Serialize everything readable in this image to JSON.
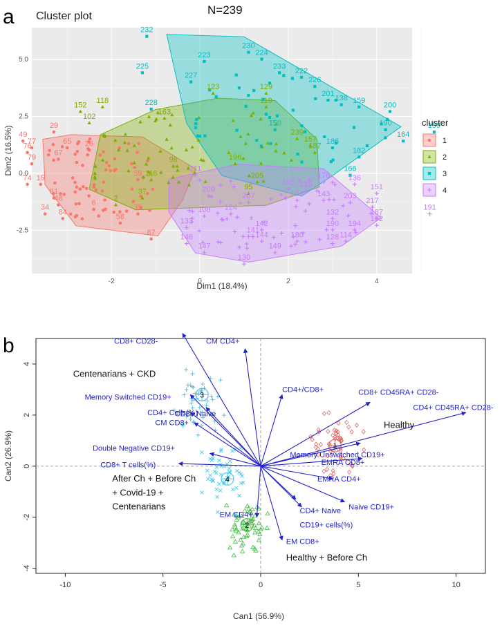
{
  "panel_a_letter": "a",
  "panel_b_letter": "b",
  "n_label": "N=239",
  "chart_data": [
    {
      "type": "scatter",
      "title": "Cluster plot",
      "xlabel": "Dim1 (18.4%)",
      "ylabel": "Dim2 (16.5%)",
      "xlim": [
        -3.8,
        4.8
      ],
      "ylim": [
        -4.4,
        6.4
      ],
      "xticks": [
        -2,
        0,
        2,
        4
      ],
      "yticks": [
        -2.5,
        0.0,
        2.5,
        5.0
      ],
      "xtick_labels": [
        "-2",
        "0",
        "2",
        "4"
      ],
      "ytick_labels": [
        "-2.5",
        "0.0",
        "2.5",
        "5.0"
      ],
      "legend_title": "cluster",
      "legend_labels": [
        "1",
        "2",
        "3",
        "4"
      ],
      "colors": {
        "1": "#f8766d",
        "2": "#7cae00",
        "3": "#00bfc4",
        "4": "#c77cff"
      },
      "hulls": {
        "1": [
          [
            -3.55,
            1.5
          ],
          [
            -2.9,
            1.7
          ],
          [
            -1.3,
            1.6
          ],
          [
            -0.1,
            0.2
          ],
          [
            -0.4,
            -1.2
          ],
          [
            -0.95,
            -2.75
          ],
          [
            -2.8,
            -2.3
          ],
          [
            -3.5,
            -0.5
          ]
        ],
        "2": [
          [
            -2.25,
            1.7
          ],
          [
            -1.0,
            2.8
          ],
          [
            0.4,
            3.3
          ],
          [
            1.7,
            3.2
          ],
          [
            2.65,
            1.5
          ],
          [
            2.7,
            -0.6
          ],
          [
            1.5,
            -1.4
          ],
          [
            0.1,
            -1.5
          ],
          [
            -1.45,
            -1.6
          ],
          [
            -2.5,
            -0.7
          ]
        ],
        "3": [
          [
            -0.75,
            6.1
          ],
          [
            1.0,
            6.0
          ],
          [
            4.55,
            2.05
          ],
          [
            3.0,
            -0.1
          ],
          [
            2.3,
            -1.0
          ],
          [
            0.5,
            -0.1
          ],
          [
            -0.3,
            2.2
          ]
        ],
        "4": [
          [
            -0.7,
            -0.25
          ],
          [
            0.85,
            0.4
          ],
          [
            2.8,
            0.2
          ],
          [
            4.1,
            -1.95
          ],
          [
            3.2,
            -3.2
          ],
          [
            1.1,
            -3.9
          ],
          [
            -0.1,
            -3.5
          ],
          [
            -0.7,
            -1.7
          ]
        ]
      },
      "labeled_points": [
        {
          "id": "232",
          "x": -1.2,
          "y": 6.2,
          "cluster": "3"
        },
        {
          "id": "230",
          "x": 1.1,
          "y": 5.5,
          "cluster": "3"
        },
        {
          "id": "224",
          "x": 1.4,
          "y": 5.2,
          "cluster": "3"
        },
        {
          "id": "223",
          "x": 0.1,
          "y": 5.1,
          "cluster": "3"
        },
        {
          "id": "225",
          "x": -1.3,
          "y": 4.6,
          "cluster": "3"
        },
        {
          "id": "233",
          "x": 1.8,
          "y": 4.6,
          "cluster": "3"
        },
        {
          "id": "222",
          "x": 2.3,
          "y": 4.4,
          "cluster": "3"
        },
        {
          "id": "227",
          "x": -0.2,
          "y": 4.2,
          "cluster": "3"
        },
        {
          "id": "226",
          "x": 2.6,
          "y": 4.0,
          "cluster": "3"
        },
        {
          "id": "201",
          "x": 2.9,
          "y": 3.4,
          "cluster": "3"
        },
        {
          "id": "138",
          "x": 3.2,
          "y": 3.2,
          "cluster": "3"
        },
        {
          "id": "159",
          "x": 3.6,
          "y": 3.1,
          "cluster": "3"
        },
        {
          "id": "200",
          "x": 4.3,
          "y": 2.9,
          "cluster": "3"
        },
        {
          "id": "150",
          "x": 1.7,
          "y": 2.1,
          "cluster": "3"
        },
        {
          "id": "190",
          "x": 4.2,
          "y": 2.1,
          "cluster": "3"
        },
        {
          "id": "199",
          "x": 5.3,
          "y": 2.0,
          "cluster": "3"
        },
        {
          "id": "164",
          "x": 4.6,
          "y": 1.6,
          "cluster": "3"
        },
        {
          "id": "182",
          "x": 3.6,
          "y": 0.9,
          "cluster": "3"
        },
        {
          "id": "166",
          "x": 3.4,
          "y": 0.1,
          "cluster": "3"
        },
        {
          "id": "123",
          "x": 0.3,
          "y": 3.7,
          "cluster": "2"
        },
        {
          "id": "129",
          "x": 1.5,
          "y": 3.7,
          "cluster": "2"
        },
        {
          "id": "119",
          "x": 1.5,
          "y": 3.1,
          "cluster": "2"
        },
        {
          "id": "118",
          "x": -2.2,
          "y": 3.1,
          "cluster": "2"
        },
        {
          "id": "152",
          "x": -2.7,
          "y": 2.9,
          "cluster": "2"
        },
        {
          "id": "102",
          "x": -2.5,
          "y": 2.4,
          "cluster": "2"
        },
        {
          "id": "163",
          "x": -0.8,
          "y": 2.6,
          "cluster": "2"
        },
        {
          "id": "228",
          "x": -1.1,
          "y": 3.0,
          "cluster": "3"
        },
        {
          "id": "239",
          "x": 2.2,
          "y": 1.7,
          "cluster": "2"
        },
        {
          "id": "157",
          "x": 2.5,
          "y": 1.4,
          "cluster": "2"
        },
        {
          "id": "186",
          "x": 3.0,
          "y": 1.3,
          "cluster": "3"
        },
        {
          "id": "187",
          "x": 2.6,
          "y": 1.1,
          "cluster": "2"
        },
        {
          "id": "29",
          "x": -3.3,
          "y": 2.0,
          "cluster": "1"
        },
        {
          "id": "49",
          "x": -4.0,
          "y": 1.6,
          "cluster": "1"
        },
        {
          "id": "77",
          "x": -3.8,
          "y": 1.3,
          "cluster": "1"
        },
        {
          "id": "76",
          "x": -3.9,
          "y": 1.1,
          "cluster": "1"
        },
        {
          "id": "65",
          "x": -3.0,
          "y": 1.3,
          "cluster": "1"
        },
        {
          "id": "26",
          "x": -2.5,
          "y": 1.2,
          "cluster": "1"
        },
        {
          "id": "67",
          "x": -3.2,
          "y": 0.8,
          "cluster": "1"
        },
        {
          "id": "79",
          "x": -3.8,
          "y": 0.6,
          "cluster": "1"
        },
        {
          "id": "74",
          "x": -3.9,
          "y": -0.3,
          "cluster": "1"
        },
        {
          "id": "15",
          "x": -3.6,
          "y": -0.3,
          "cluster": "1"
        },
        {
          "id": "81",
          "x": -3.3,
          "y": -0.9,
          "cluster": "1"
        },
        {
          "id": "48",
          "x": -3.2,
          "y": -1.2,
          "cluster": "1"
        },
        {
          "id": "34",
          "x": -3.5,
          "y": -1.6,
          "cluster": "1"
        },
        {
          "id": "84",
          "x": -3.1,
          "y": -1.8,
          "cluster": "1"
        },
        {
          "id": "6",
          "x": -2.4,
          "y": -1.4,
          "cluster": "1"
        },
        {
          "id": "58",
          "x": -1.8,
          "y": -2.0,
          "cluster": "1"
        },
        {
          "id": "87",
          "x": -1.1,
          "y": -2.7,
          "cluster": "1"
        },
        {
          "id": "35",
          "x": -1.4,
          "y": -1.6,
          "cluster": "1"
        },
        {
          "id": "37",
          "x": -1.3,
          "y": -0.9,
          "cluster": "2"
        },
        {
          "id": "2",
          "x": -1.9,
          "y": -1.2,
          "cluster": "2"
        },
        {
          "id": "59",
          "x": -1.4,
          "y": -0.1,
          "cluster": "1"
        },
        {
          "id": "116",
          "x": -1.1,
          "y": -0.1,
          "cluster": "2"
        },
        {
          "id": "98",
          "x": -0.6,
          "y": 0.5,
          "cluster": "2"
        },
        {
          "id": "196",
          "x": 0.8,
          "y": 0.6,
          "cluster": "2"
        },
        {
          "id": "211",
          "x": -0.1,
          "y": 0.1,
          "cluster": "4"
        },
        {
          "id": "205",
          "x": 1.3,
          "y": -0.2,
          "cluster": "2"
        },
        {
          "id": "95",
          "x": 1.1,
          "y": -0.7,
          "cluster": "2"
        },
        {
          "id": "176",
          "x": 2.8,
          "y": -0.2,
          "cluster": "4"
        },
        {
          "id": "151",
          "x": 4.0,
          "y": -0.7,
          "cluster": "4"
        },
        {
          "id": "191",
          "x": 5.2,
          "y": -1.6,
          "cluster": "4"
        },
        {
          "id": "136",
          "x": 3.5,
          "y": -0.3,
          "cluster": "4"
        },
        {
          "id": "209",
          "x": 0.2,
          "y": -0.8,
          "cluster": "4"
        },
        {
          "id": "207",
          "x": 1.1,
          "y": -1.1,
          "cluster": "4"
        },
        {
          "id": "174",
          "x": 2.2,
          "y": -1.0,
          "cluster": "4"
        },
        {
          "id": "143",
          "x": 2.8,
          "y": -1.0,
          "cluster": "4"
        },
        {
          "id": "203",
          "x": 3.4,
          "y": -1.1,
          "cluster": "4"
        },
        {
          "id": "217",
          "x": 3.9,
          "y": -1.3,
          "cluster": "4"
        },
        {
          "id": "124",
          "x": 0.7,
          "y": -1.6,
          "cluster": "4"
        },
        {
          "id": "108",
          "x": 0.1,
          "y": -1.7,
          "cluster": "4"
        },
        {
          "id": "133",
          "x": -0.3,
          "y": -2.2,
          "cluster": "4"
        },
        {
          "id": "132",
          "x": 3.0,
          "y": -1.8,
          "cluster": "4"
        },
        {
          "id": "187",
          "x": 4.0,
          "y": -1.8,
          "cluster": "4"
        },
        {
          "id": "142",
          "x": 1.4,
          "y": -2.3,
          "cluster": "4"
        },
        {
          "id": "190",
          "x": 3.0,
          "y": -2.3,
          "cluster": "4"
        },
        {
          "id": "194",
          "x": 3.5,
          "y": -2.3,
          "cluster": "4"
        },
        {
          "id": "162",
          "x": 4.0,
          "y": -2.1,
          "cluster": "4"
        },
        {
          "id": "141",
          "x": 1.2,
          "y": -2.6,
          "cluster": "4"
        },
        {
          "id": "146",
          "x": -0.3,
          "y": -2.9,
          "cluster": "4"
        },
        {
          "id": "144",
          "x": 1.4,
          "y": -2.8,
          "cluster": "4"
        },
        {
          "id": "180",
          "x": 2.2,
          "y": -2.8,
          "cluster": "4"
        },
        {
          "id": "114",
          "x": 3.3,
          "y": -2.8,
          "cluster": "4"
        },
        {
          "id": "128",
          "x": 3.0,
          "y": -2.9,
          "cluster": "4"
        },
        {
          "id": "147",
          "x": 0.1,
          "y": -3.3,
          "cluster": "4"
        },
        {
          "id": "149",
          "x": 1.7,
          "y": -3.3,
          "cluster": "4"
        },
        {
          "id": "130",
          "x": 1.0,
          "y": -3.8,
          "cluster": "4"
        },
        {
          "id": "216",
          "x": 2.4,
          "y": -0.6,
          "cluster": "4"
        },
        {
          "id": "125",
          "x": 2.0,
          "y": -0.5,
          "cluster": "4"
        }
      ]
    },
    {
      "type": "scatter",
      "title": "",
      "xlabel": "Can1 (56.9%)",
      "ylabel": "Can2 (26.9%)",
      "xlim": [
        -11.5,
        11.5
      ],
      "ylim": [
        -4.2,
        5.0
      ],
      "xticks": [
        -10,
        -5,
        0,
        5,
        10
      ],
      "yticks": [
        -4,
        -2,
        0,
        2,
        4
      ],
      "xtick_labels": [
        "-10",
        "-5",
        "0",
        "5",
        "10"
      ],
      "ytick_labels": [
        "-4",
        "-2",
        "0",
        "2",
        "4"
      ],
      "group_colors": {
        "1": "#e06666",
        "2": "#44bb44",
        "3": "#55bbdd",
        "4": "#44ccee"
      },
      "group_means": [
        {
          "id": "1",
          "x": 3.8,
          "y": 0.8
        },
        {
          "id": "2",
          "x": -0.7,
          "y": -2.3
        },
        {
          "id": "3",
          "x": -3.0,
          "y": 2.8
        },
        {
          "id": "4",
          "x": -1.7,
          "y": -0.5
        }
      ],
      "vectors": [
        {
          "label": "CD8+ CD28-",
          "x": -4.0,
          "y": 5.2
        },
        {
          "label": "CM CD4+",
          "x": -0.8,
          "y": 4.6
        },
        {
          "label": "Memory Switched CD19+",
          "x": -3.6,
          "y": 2.8
        },
        {
          "label": "CD4+ Cells(%)",
          "x": -3.6,
          "y": 2.1
        },
        {
          "label": "CD8+ Naive",
          "x": -2.8,
          "y": 2.3
        },
        {
          "label": "CM CD8+",
          "x": -3.4,
          "y": 1.7
        },
        {
          "label": "CD4+/CD8+",
          "x": 1.1,
          "y": 2.8
        },
        {
          "label": "CD8+ CD45RA+ CD28-",
          "x": 5.6,
          "y": 2.5
        },
        {
          "label": "CD4+ CD45RA+ CD28-",
          "x": 10.5,
          "y": 2.1
        },
        {
          "label": "Memory Unswitched CD19+",
          "x": 5.2,
          "y": 0.3
        },
        {
          "label": "EMRA CD8+",
          "x": 5.1,
          "y": 0.9
        },
        {
          "label": "EMRA CD4+",
          "x": 3.7,
          "y": -0.5
        },
        {
          "label": "Naive CD19+",
          "x": 4.3,
          "y": -1.4
        },
        {
          "label": "CD4+ Naive",
          "x": 1.8,
          "y": -1.3
        },
        {
          "label": "CD19+ cells(%)",
          "x": 2.1,
          "y": -1.6
        },
        {
          "label": "EM CD8+",
          "x": 1.1,
          "y": -2.9
        },
        {
          "label": "EM CD4+",
          "x": -0.2,
          "y": -2.0
        },
        {
          "label": "Double Negative CD19+",
          "x": -2.6,
          "y": 0.5
        },
        {
          "label": "CD8+ T cells(%)",
          "x": -4.2,
          "y": 0.1
        }
      ],
      "annotations": [
        {
          "text": "Centenarians  + CKD",
          "x": -9.6,
          "y": 3.5
        },
        {
          "text": "Healthy",
          "x": 6.3,
          "y": 1.5
        },
        {
          "text": "After Ch + Before Ch",
          "x": -7.6,
          "y": -0.6
        },
        {
          "text": "+ Covid-19 +",
          "x": -7.6,
          "y": -1.15
        },
        {
          "text": "Centenarians",
          "x": -7.6,
          "y": -1.7
        },
        {
          "text": "Healthy + Before Ch",
          "x": 1.3,
          "y": -3.7
        }
      ]
    }
  ]
}
